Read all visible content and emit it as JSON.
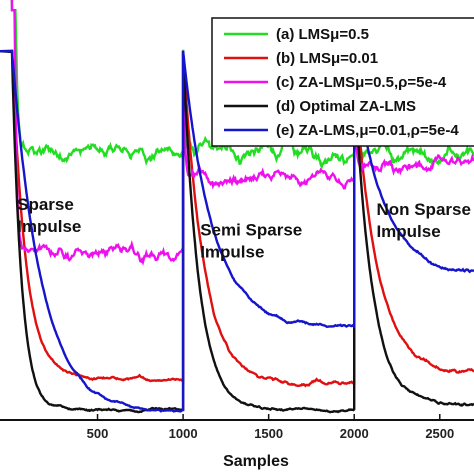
{
  "chart_data": {
    "type": "line",
    "xlabel": "Samples",
    "ylabel": "",
    "xlim": [
      -70,
      2700
    ],
    "ylim": [
      -40,
      1
    ],
    "x_ticks": [
      500,
      1000,
      1500,
      2000,
      2500
    ],
    "annotations": [
      {
        "lines": [
          "Sparse",
          "Impulse"
        ],
        "x": 30,
        "y": -19.5
      },
      {
        "lines": [
          "Semi Sparse",
          "Impulse"
        ],
        "x": 1100,
        "y": -22
      },
      {
        "lines": [
          "Non Sparse",
          "Impulse"
        ],
        "x": 2130,
        "y": -20
      }
    ],
    "segment_boundaries": [
      1000,
      2000
    ],
    "series": [
      {
        "name": "(a) LMSμ=0.5",
        "color": "#22dd22",
        "levels": [
          {
            "start": 100,
            "level": -13.8,
            "decay": 10,
            "noise": 1.3
          },
          {
            "start": -4,
            "level": -13.8,
            "decay": 8,
            "noise": 1.5
          },
          {
            "start": -6,
            "level": -14.0,
            "decay": 8,
            "noise": 1.5
          }
        ]
      },
      {
        "name": "(b) LMSμ=0.01",
        "color": "#e01010",
        "levels": [
          {
            "start": -4,
            "level": -36.0,
            "decay": 80,
            "noise": 0.3
          },
          {
            "start": -4,
            "level": -36.5,
            "decay": 120,
            "noise": 0.4
          },
          {
            "start": -6,
            "level": -35.5,
            "decay": 130,
            "noise": 0.4
          }
        ]
      },
      {
        "name": "(c) ZA-LMSμ=0.5,ρ=5e-4",
        "color": "#ee11ee",
        "levels": [
          {
            "start": 100,
            "level": -23.5,
            "decay": 10,
            "noise": 1.2
          },
          {
            "start": -4,
            "level": -16.5,
            "decay": 8,
            "noise": 1.2
          },
          {
            "start": -6,
            "level": -15.0,
            "decay": 8,
            "noise": 1.2
          }
        ]
      },
      {
        "name": "(d) Optimal ZA-LMS",
        "color": "#111111",
        "levels": [
          {
            "start": -4,
            "level": -39.0,
            "decay": 55,
            "noise": 0.25
          },
          {
            "start": -4,
            "level": -39.0,
            "decay": 90,
            "noise": 0.25
          },
          {
            "start": -6,
            "level": -38.5,
            "decay": 100,
            "noise": 0.3
          }
        ]
      },
      {
        "name": "(e) ZA-LMS,μ=0.01,ρ=5e-4",
        "color": "#1515cc",
        "levels": [
          {
            "start": -4,
            "level": -39.3,
            "decay": 170,
            "noise": 0.25
          },
          {
            "start": -4,
            "level": -31.0,
            "decay": 170,
            "noise": 0.3
          },
          {
            "start": -6,
            "level": -26.0,
            "decay": 170,
            "noise": 0.4
          }
        ]
      }
    ],
    "legend_position": "top-right"
  }
}
